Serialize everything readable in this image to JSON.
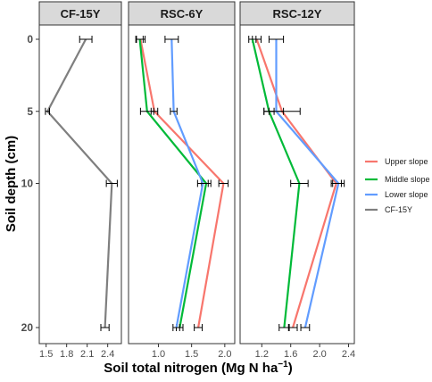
{
  "chart_data": {
    "type": "line",
    "orientation": "vertical-profile",
    "x_title_parts": {
      "main": "Soil total nitrogen (Mg N ha",
      "sup": "−1",
      "close": ")"
    },
    "ylabel": "Soil depth (cm)",
    "y_ticks": [
      0,
      5,
      10,
      20
    ],
    "ylim_display": [
      0,
      20
    ],
    "y_reversed": true,
    "grid": false,
    "legend_position": "right",
    "legend": [
      {
        "name": "Upper slope",
        "color": "#F8766D"
      },
      {
        "name": "Middle slope",
        "color": "#00BA38"
      },
      {
        "name": "Lower slope",
        "color": "#619CFF"
      },
      {
        "name": "CF-15Y",
        "color": "#7F7F7F"
      }
    ],
    "panels": [
      {
        "title": "CF-15Y",
        "xlim": [
          1.4,
          2.6
        ],
        "x_ticks": [
          1.5,
          1.8,
          2.1,
          2.4
        ],
        "x_tick_labels": [
          "1.5",
          "1.8",
          "2.1",
          "2.4"
        ],
        "series": [
          {
            "name": "CF-15Y",
            "color": "#7F7F7F",
            "points": [
              {
                "depth": 0,
                "value": 2.08,
                "err": 0.09
              },
              {
                "depth": 5,
                "value": 1.52,
                "err": 0.03
              },
              {
                "depth": 10,
                "value": 2.46,
                "err": 0.08
              },
              {
                "depth": 20,
                "value": 2.36,
                "err": 0.06
              }
            ]
          }
        ]
      },
      {
        "title": "RSC-6Y",
        "xlim": [
          0.55,
          2.15
        ],
        "x_ticks": [
          1.0,
          1.5,
          2.0
        ],
        "x_tick_labels": [
          "1.0",
          "1.5",
          "2.0"
        ],
        "series": [
          {
            "name": "Upper slope",
            "color": "#F8766D",
            "points": [
              {
                "depth": 0,
                "value": 0.73,
                "err": 0.07
              },
              {
                "depth": 5,
                "value": 0.94,
                "err": 0.05
              },
              {
                "depth": 10,
                "value": 1.98,
                "err": 0.07
              },
              {
                "depth": 20,
                "value": 1.6,
                "err": 0.06
              }
            ]
          },
          {
            "name": "Middle slope",
            "color": "#00BA38",
            "points": [
              {
                "depth": 0,
                "value": 0.72,
                "err": 0.05
              },
              {
                "depth": 5,
                "value": 0.83,
                "err": 0.1
              },
              {
                "depth": 10,
                "value": 1.72,
                "err": 0.07
              },
              {
                "depth": 20,
                "value": 1.32,
                "err": 0.05
              }
            ]
          },
          {
            "name": "Lower slope",
            "color": "#619CFF",
            "points": [
              {
                "depth": 0,
                "value": 1.2,
                "err": 0.1
              },
              {
                "depth": 5,
                "value": 1.23,
                "err": 0.05
              },
              {
                "depth": 10,
                "value": 1.67,
                "err": 0.08
              },
              {
                "depth": 20,
                "value": 1.27,
                "err": 0.05
              }
            ]
          }
        ]
      },
      {
        "title": "RSC-12Y",
        "xlim": [
          0.9,
          2.48
        ],
        "x_ticks": [
          1.2,
          1.6,
          2.0,
          2.4
        ],
        "x_tick_labels": [
          "1.2",
          "1.6",
          "2.0",
          "2.4"
        ],
        "series": [
          {
            "name": "Upper slope",
            "color": "#F8766D",
            "points": [
              {
                "depth": 0,
                "value": 1.13,
                "err": 0.06
              },
              {
                "depth": 5,
                "value": 1.48,
                "err": 0.25
              },
              {
                "depth": 10,
                "value": 2.23,
                "err": 0.07
              },
              {
                "depth": 20,
                "value": 1.63,
                "err": 0.06
              }
            ]
          },
          {
            "name": "Middle slope",
            "color": "#00BA38",
            "points": [
              {
                "depth": 0,
                "value": 1.07,
                "err": 0.05
              },
              {
                "depth": 5,
                "value": 1.3,
                "err": 0.07
              },
              {
                "depth": 10,
                "value": 1.72,
                "err": 0.12
              },
              {
                "depth": 20,
                "value": 1.51,
                "err": 0.07
              }
            ]
          },
          {
            "name": "Lower slope",
            "color": "#619CFF",
            "points": [
              {
                "depth": 0,
                "value": 1.4,
                "err": 0.1
              },
              {
                "depth": 5,
                "value": 1.4,
                "err": 0.1
              },
              {
                "depth": 10,
                "value": 2.26,
                "err": 0.08
              },
              {
                "depth": 20,
                "value": 1.8,
                "err": 0.06
              }
            ]
          }
        ]
      }
    ]
  }
}
